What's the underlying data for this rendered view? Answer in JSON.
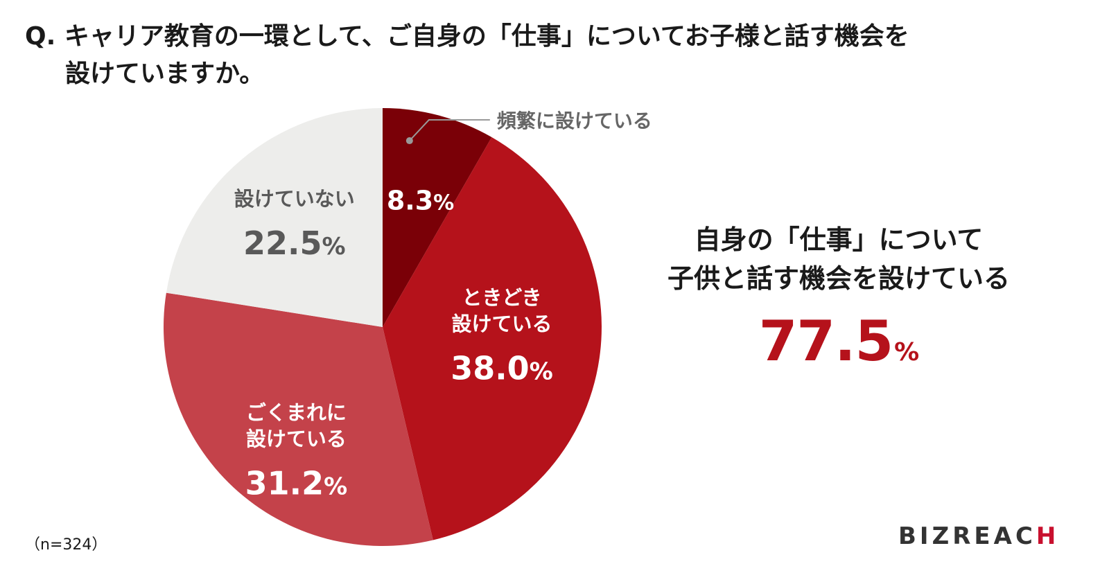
{
  "question": {
    "line1": "Q. キャリア教育の一環として、ご自身の「仕事」についてお子様と話す機会を",
    "line2": "設けていますか。"
  },
  "chart_data": {
    "type": "pie",
    "sample_size": "（n=324）",
    "slices": [
      {
        "label_lines": [
          "頻繁に設けている"
        ],
        "value": 8.3,
        "display": "8.3",
        "color": "#7a0007"
      },
      {
        "label_lines": [
          "ときどき",
          "設けている"
        ],
        "value": 38.0,
        "display": "38.0",
        "color": "#b5121b"
      },
      {
        "label_lines": [
          "ごくまれに",
          "設けている"
        ],
        "value": 31.2,
        "display": "31.2",
        "color": "#c4424a"
      },
      {
        "label_lines": [
          "設けていない"
        ],
        "value": 22.5,
        "display": "22.5",
        "color": "#ededeb"
      }
    ],
    "unit": "%"
  },
  "summary": {
    "line1": "自身の「仕事」について",
    "line2": "子供と話す機会を設けている",
    "value": "77.5",
    "unit": "%"
  },
  "logo": {
    "part1": "BIZREAC",
    "part2": "H"
  }
}
